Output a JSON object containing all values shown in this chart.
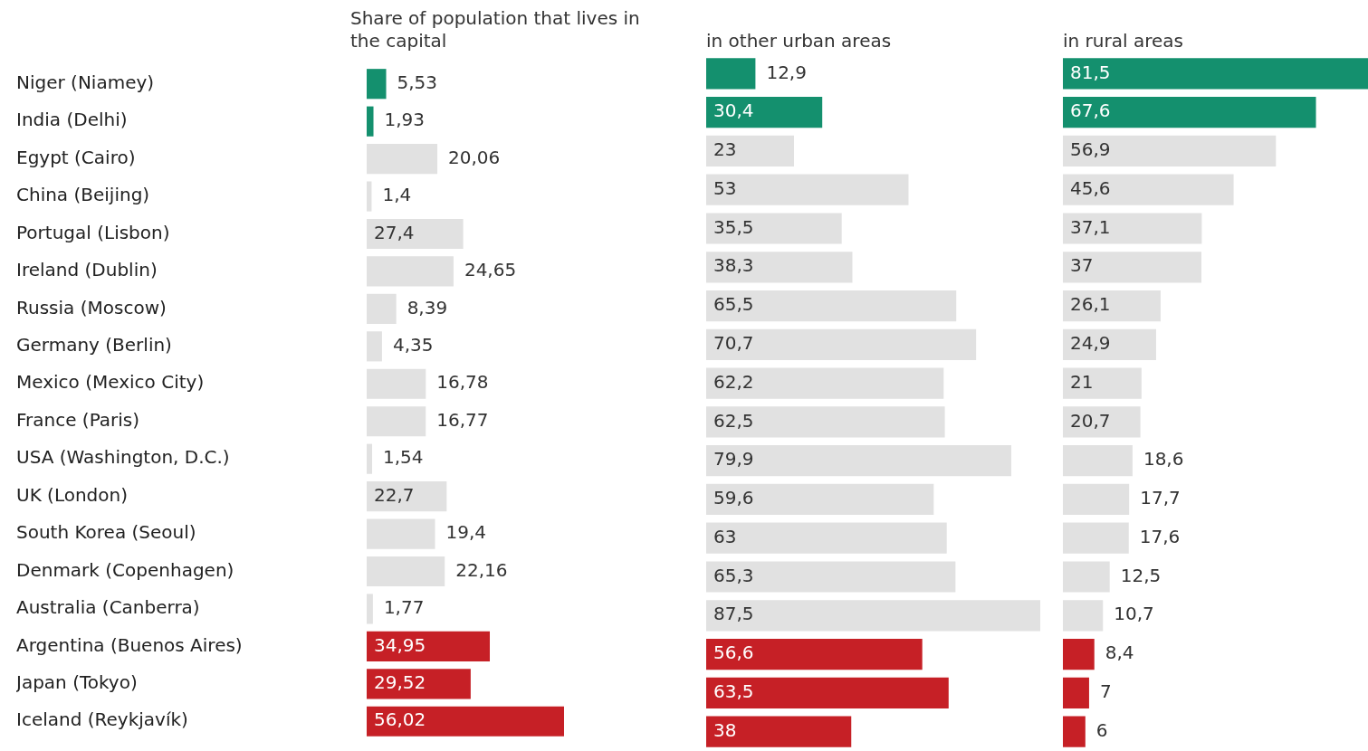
{
  "chart_data": [
    {
      "type": "bar",
      "orientation": "horizontal",
      "title": "Share of population that lives in the capital",
      "tick_labels": "y",
      "categories": [
        "Niger (Niamey)",
        "India (Delhi)",
        "Egypt (Cairo)",
        "China (Beijing)",
        "Portugal (Lisbon)",
        "Ireland (Dublin)",
        "Russia (Moscow)",
        "Germany (Berlin)",
        "Mexico (Mexico City)",
        "France (Paris)",
        "USA (Washington, D.C.)",
        "UK (London)",
        "South Korea (Seoul)",
        "Denmark (Copenhagen)",
        "Australia (Canberra)",
        "Argentina (Buenos Aires)",
        "Japan (Tokyo)",
        "Iceland (Reykjavík)"
      ],
      "values": [
        5.53,
        1.93,
        20.06,
        1.4,
        27.4,
        24.65,
        8.39,
        4.35,
        16.78,
        16.77,
        1.54,
        22.7,
        19.4,
        22.16,
        1.77,
        34.95,
        29.52,
        56.02
      ],
      "value_labels": [
        "5,53",
        "1,93",
        "20,06",
        "1,4",
        "27,4",
        "24,65",
        "8,39",
        "4,35",
        "16,78",
        "16,77",
        "1,54",
        "22,7",
        "19,4",
        "22,16",
        "1,77",
        "34,95",
        "29,52",
        "56,02"
      ],
      "colors": [
        "#14906e",
        "#14906e",
        "#e1e1e1",
        "#e1e1e1",
        "#e1e1e1",
        "#e1e1e1",
        "#e1e1e1",
        "#e1e1e1",
        "#e1e1e1",
        "#e1e1e1",
        "#e1e1e1",
        "#e1e1e1",
        "#e1e1e1",
        "#e1e1e1",
        "#e1e1e1",
        "#c62026",
        "#c62026",
        "#c62026"
      ]
    },
    {
      "type": "bar",
      "orientation": "horizontal",
      "title": "in other urban areas",
      "tick_labels": false,
      "categories": [
        null,
        null,
        null,
        null,
        null,
        null,
        null,
        null,
        null,
        null,
        null,
        null,
        null,
        null,
        null,
        null,
        null,
        null
      ],
      "values": [
        12.9,
        30.4,
        23,
        53,
        35.5,
        38.3,
        65.5,
        70.7,
        62.2,
        62.5,
        79.9,
        59.6,
        63,
        65.3,
        87.5,
        56.6,
        63.5,
        38
      ],
      "value_labels": [
        "12,9",
        "30,4",
        "23",
        "53",
        "35,5",
        "38,3",
        "65,5",
        "70,7",
        "62,2",
        "62,5",
        "79,9",
        "59,6",
        "63",
        "65,3",
        "87,5",
        "56,6",
        "63,5",
        "38"
      ],
      "colors": [
        "#14906e",
        "#14906e",
        "#e1e1e1",
        "#e1e1e1",
        "#e1e1e1",
        "#e1e1e1",
        "#e1e1e1",
        "#e1e1e1",
        "#e1e1e1",
        "#e1e1e1",
        "#e1e1e1",
        "#e1e1e1",
        "#e1e1e1",
        "#e1e1e1",
        "#e1e1e1",
        "#c62026",
        "#c62026",
        "#c62026"
      ]
    },
    {
      "type": "bar",
      "orientation": "horizontal",
      "title": "in rural areas",
      "tick_labels": false,
      "categories": [
        null,
        null,
        null,
        null,
        null,
        null,
        null,
        null,
        null,
        null,
        null,
        null,
        null,
        null,
        null,
        null,
        null,
        null
      ],
      "values": [
        81.5,
        67.6,
        56.9,
        45.6,
        37.1,
        37,
        26.1,
        24.9,
        21,
        20.7,
        18.6,
        17.7,
        17.6,
        12.5,
        10.7,
        8.4,
        7,
        6
      ],
      "value_labels": [
        "81,5",
        "67,6",
        "56,9",
        "45,6",
        "37,1",
        "37",
        "26,1",
        "24,9",
        "21",
        "20,7",
        "18,6",
        "17,7",
        "17,6",
        "12,5",
        "10,7",
        "8,4",
        "7",
        "6"
      ],
      "colors": [
        "#14906e",
        "#14906e",
        "#e1e1e1",
        "#e1e1e1",
        "#e1e1e1",
        "#e1e1e1",
        "#e1e1e1",
        "#e1e1e1",
        "#e1e1e1",
        "#e1e1e1",
        "#e1e1e1",
        "#e1e1e1",
        "#e1e1e1",
        "#e1e1e1",
        "#e1e1e1",
        "#c62026",
        "#c62026",
        "#c62026"
      ]
    }
  ]
}
